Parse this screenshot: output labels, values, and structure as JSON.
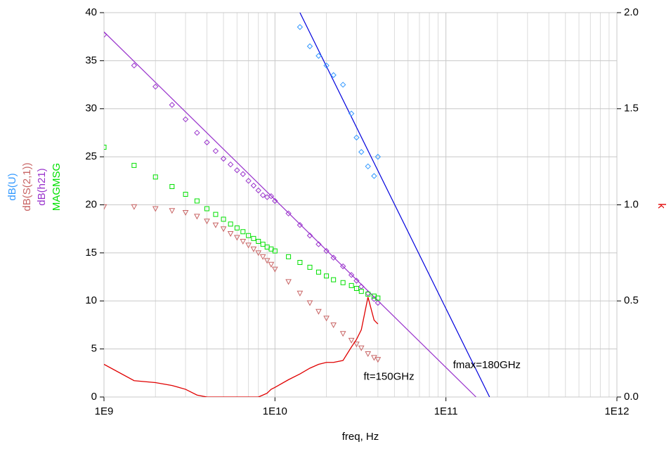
{
  "chart_data": {
    "type": "scatter",
    "x_label": "freq, Hz",
    "log_x": true,
    "grid": true,
    "xlim": [
      1000000000.0,
      1000000000000.0
    ],
    "xticks": [
      {
        "value": 1000000000.0,
        "label": "1E9"
      },
      {
        "value": 10000000000.0,
        "label": "1E10"
      },
      {
        "value": 100000000000.0,
        "label": "1E11"
      },
      {
        "value": 1000000000000.0,
        "label": "1E12"
      }
    ],
    "ylim": [
      0,
      40
    ],
    "yticks": [
      0,
      5,
      10,
      15,
      20,
      25,
      30,
      35,
      40
    ],
    "y2lim": [
      0,
      2
    ],
    "y2ticks": [
      {
        "value": 0,
        "label": "0.0"
      },
      {
        "value": 0.5,
        "label": "0.5"
      },
      {
        "value": 1,
        "label": "1.0"
      },
      {
        "value": 1.5,
        "label": "1.5"
      },
      {
        "value": 2,
        "label": "2.0"
      }
    ],
    "x": [
      1000000000.0,
      1500000000.0,
      2000000000.0,
      2500000000.0,
      3000000000.0,
      3500000000.0,
      4000000000.0,
      4500000000.0,
      5000000000.0,
      5500000000.0,
      6000000000.0,
      6500000000.0,
      7000000000.0,
      7500000000.0,
      8000000000.0,
      8500000000.0,
      9000000000.0,
      9500000000.0,
      10000000000.0,
      12000000000.0,
      14000000000.0,
      16000000000.0,
      18000000000.0,
      20000000000.0,
      22000000000.0,
      25000000000.0,
      28000000000.0,
      30000000000.0,
      32000000000.0,
      35000000000.0,
      38000000000.0,
      40000000000.0
    ],
    "series": [
      {
        "name": "dB(U)",
        "color": "#3399ff",
        "marker": "diamond",
        "values": [
          null,
          null,
          null,
          null,
          null,
          null,
          null,
          null,
          null,
          null,
          null,
          null,
          null,
          null,
          null,
          null,
          null,
          null,
          null,
          null,
          38.5,
          36.5,
          35.5,
          34.5,
          33.5,
          32.5,
          29.5,
          27,
          25.5,
          24,
          23,
          25
        ]
      },
      {
        "name": "dB(S(2,1))",
        "color": "#c86464",
        "marker": "triangle",
        "values": [
          19.8,
          19.8,
          19.6,
          19.4,
          19.2,
          18.8,
          18.3,
          17.9,
          17.5,
          17.0,
          16.6,
          16.2,
          15.8,
          15.4,
          15.0,
          14.6,
          14.2,
          13.8,
          13.3,
          12.0,
          10.8,
          9.8,
          8.9,
          8.2,
          7.5,
          6.6,
          5.9,
          5.5,
          5.1,
          4.5,
          4.1,
          3.9
        ]
      },
      {
        "name": "dB(h21)",
        "color": "#9933cc",
        "marker": "diamond",
        "values": [
          37.7,
          34.5,
          32.3,
          30.4,
          28.9,
          27.5,
          26.5,
          25.6,
          24.8,
          24.2,
          23.6,
          23.2,
          22.5,
          22.0,
          21.5,
          21.0,
          20.8,
          20.9,
          20.4,
          19.1,
          17.9,
          16.8,
          15.9,
          15.2,
          14.5,
          13.6,
          12.7,
          12.1,
          11.5,
          10.8,
          10.2,
          9.8
        ]
      },
      {
        "name": "MAGMSG",
        "color": "#00e000",
        "marker": "square",
        "values": [
          26,
          24.1,
          22.9,
          21.9,
          21.1,
          20.4,
          19.6,
          19.0,
          18.5,
          18.0,
          17.6,
          17.2,
          16.8,
          16.5,
          16.2,
          15.9,
          15.6,
          15.4,
          15.2,
          14.6,
          14.0,
          13.5,
          13.0,
          12.6,
          12.2,
          11.9,
          11.6,
          11.3,
          11.0,
          10.7,
          10.5,
          10.3
        ]
      },
      {
        "name": "k",
        "color": "#e00000",
        "marker": "line",
        "axis": "y2",
        "values": [
          0.17,
          0.085,
          0.075,
          0.06,
          0.04,
          0.01,
          0.0,
          0.0,
          0.0,
          0.0,
          0.0,
          0.0,
          0.0,
          0.0,
          0.0,
          0.01,
          0.02,
          0.04,
          0.05,
          0.09,
          0.12,
          0.15,
          0.17,
          0.18,
          0.18,
          0.19,
          0.26,
          0.3,
          0.35,
          0.52,
          0.4,
          0.38
        ]
      }
    ],
    "lines": [
      {
        "color": "#9933cc",
        "x": [
          1000000000.0,
          150000000000.0
        ],
        "values": [
          38,
          0
        ]
      },
      {
        "color": "#0000dd",
        "x": [
          14000000000.0,
          180000000000.0
        ],
        "values": [
          40,
          0
        ]
      }
    ],
    "annotations": [
      {
        "text": "ft=150GHz",
        "x": 33000000000.0,
        "y": 2.1
      },
      {
        "text": "fmax=180GHz",
        "x": 110000000000.0,
        "y": 3.3
      }
    ]
  }
}
